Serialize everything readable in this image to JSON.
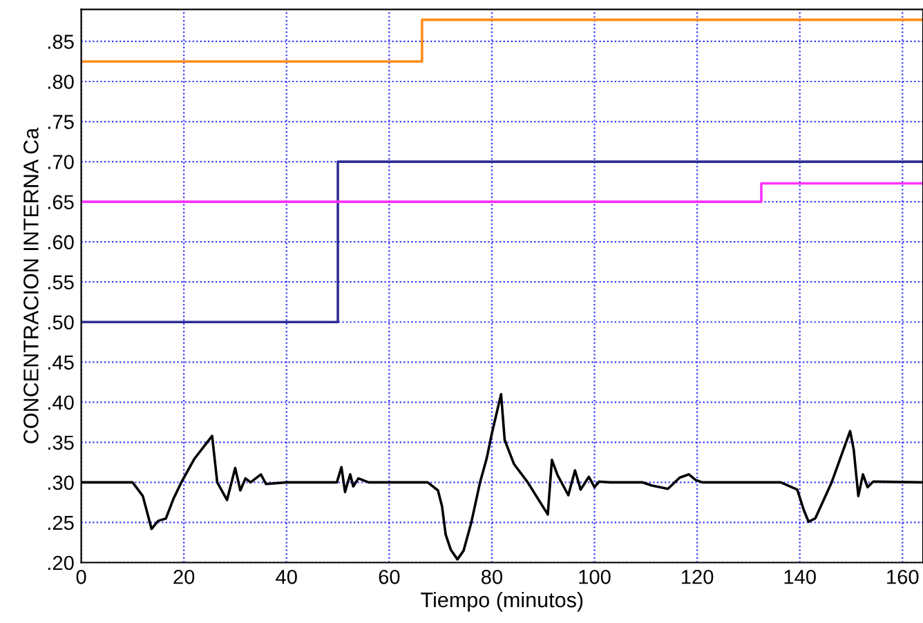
{
  "chart_data": {
    "type": "line",
    "xlabel": "Tiempo (minutos)",
    "ylabel": "CONCENTRACION INTERNA Ca",
    "xlim": [
      0,
      164
    ],
    "ylim": [
      0.2,
      0.89
    ],
    "xticks": [
      0,
      20,
      40,
      60,
      80,
      100,
      120,
      140,
      160
    ],
    "yticks": [
      {
        "value": 0.2,
        "label": ".20"
      },
      {
        "value": 0.25,
        "label": ".25"
      },
      {
        "value": 0.3,
        "label": ".30"
      },
      {
        "value": 0.35,
        "label": ".35"
      },
      {
        "value": 0.4,
        "label": ".40"
      },
      {
        "value": 0.45,
        "label": ".45"
      },
      {
        "value": 0.5,
        "label": ".50"
      },
      {
        "value": 0.55,
        "label": ".55"
      },
      {
        "value": 0.6,
        "label": ".60"
      },
      {
        "value": 0.65,
        "label": ".65"
      },
      {
        "value": 0.7,
        "label": ".70"
      },
      {
        "value": 0.75,
        "label": ".75"
      },
      {
        "value": 0.8,
        "label": ".80"
      },
      {
        "value": 0.85,
        "label": ".85"
      }
    ],
    "grid": true,
    "line_style": "solid",
    "marker": "none",
    "series": [
      {
        "type": "step",
        "color": "#ff8c1a",
        "x": [
          0,
          66.4,
          164
        ],
        "values": [
          0.825,
          0.877,
          0.877
        ]
      },
      {
        "type": "step",
        "color": "#2e2e96",
        "x": [
          0,
          50,
          164
        ],
        "values": [
          0.5,
          0.7,
          0.7
        ]
      },
      {
        "type": "step",
        "color": "#ff33ff",
        "x": [
          0,
          132.5,
          164
        ],
        "values": [
          0.65,
          0.673,
          0.673
        ]
      },
      {
        "color": "#000000",
        "x": [
          0,
          10,
          12,
          13.7,
          15,
          16.5,
          18,
          19.5,
          22,
          25.5,
          26.5,
          28.4,
          30,
          31,
          32,
          33,
          35,
          36,
          40,
          45,
          49.8,
          50.7,
          51.4,
          52.4,
          53,
          54,
          56,
          64,
          67.5,
          69.5,
          70.3,
          71,
          72,
          73.3,
          74.5,
          76,
          77.7,
          79,
          80,
          81.8,
          82.5,
          84.3,
          87,
          90.9,
          91.7,
          92.8,
          94.9,
          96.2,
          97.3,
          98.9,
          100,
          100.9,
          103,
          108,
          109.4,
          111.2,
          114.3,
          116.6,
          118.4,
          119.7,
          121,
          136.3,
          139.5,
          140.8,
          141.7,
          143,
          146.2,
          149.8,
          150.5,
          151.4,
          152.3,
          153.2,
          154.3,
          164
        ],
        "values": [
          0.3,
          0.3,
          0.283,
          0.242,
          0.252,
          0.255,
          0.28,
          0.3,
          0.329,
          0.358,
          0.3,
          0.278,
          0.318,
          0.29,
          0.305,
          0.3,
          0.31,
          0.298,
          0.3,
          0.3,
          0.3,
          0.319,
          0.288,
          0.31,
          0.295,
          0.305,
          0.3,
          0.3,
          0.3,
          0.29,
          0.27,
          0.235,
          0.216,
          0.204,
          0.215,
          0.25,
          0.3,
          0.33,
          0.361,
          0.41,
          0.353,
          0.323,
          0.3,
          0.26,
          0.328,
          0.309,
          0.284,
          0.315,
          0.291,
          0.307,
          0.294,
          0.301,
          0.3,
          0.3,
          0.3,
          0.296,
          0.292,
          0.306,
          0.31,
          0.303,
          0.3,
          0.3,
          0.291,
          0.265,
          0.251,
          0.255,
          0.3,
          0.364,
          0.341,
          0.283,
          0.31,
          0.294,
          0.301,
          0.3
        ]
      }
    ]
  }
}
